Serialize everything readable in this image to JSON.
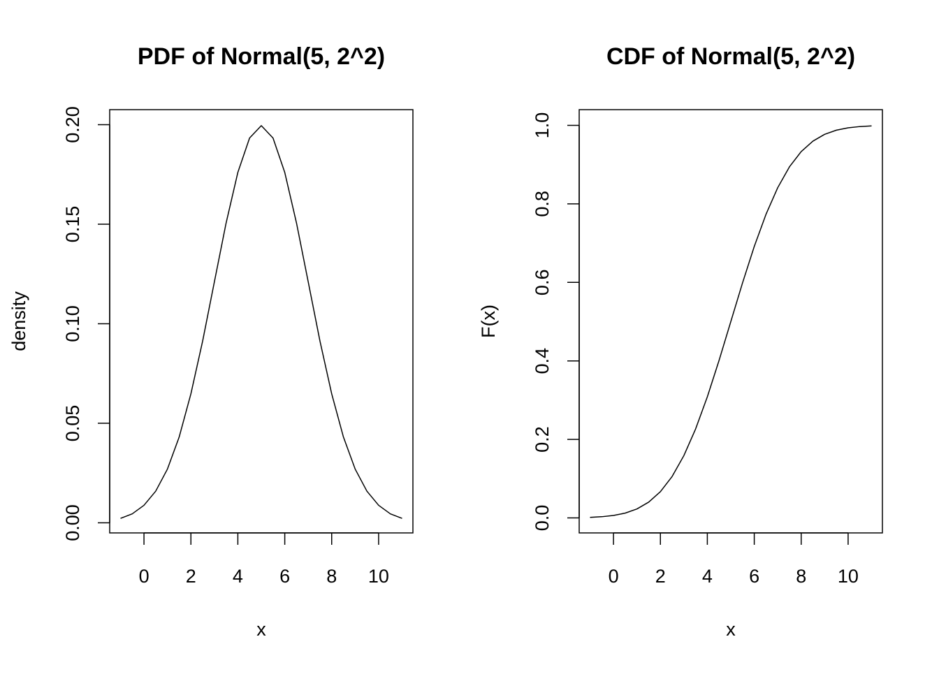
{
  "chart_data": [
    {
      "type": "line",
      "title": "PDF of Normal(5, 2^2)",
      "xlabel": "x",
      "ylabel": "density",
      "xlim": [
        -1,
        11
      ],
      "ylim": [
        0,
        0.2
      ],
      "x_ticks": [
        0,
        2,
        4,
        6,
        8,
        10
      ],
      "x_tick_labels": [
        "0",
        "2",
        "4",
        "6",
        "8",
        "10"
      ],
      "y_ticks": [
        0,
        0.05,
        0.1,
        0.15,
        0.2
      ],
      "y_tick_labels": [
        "0.00",
        "0.05",
        "0.10",
        "0.15",
        "0.20"
      ],
      "grid": false,
      "color": "#000000",
      "series": [
        {
          "x": [
            -1,
            -0.5,
            0,
            0.5,
            1,
            1.5,
            2,
            2.5,
            3,
            3.5,
            4,
            4.5,
            5,
            5.5,
            6,
            6.5,
            7,
            7.5,
            8,
            8.5,
            9,
            9.5,
            10,
            10.5,
            11
          ],
          "y": [
            0.0022,
            0.0045,
            0.0088,
            0.0159,
            0.027,
            0.0431,
            0.0648,
            0.0913,
            0.121,
            0.1506,
            0.176,
            0.1933,
            0.1995,
            0.1933,
            0.176,
            0.1506,
            0.121,
            0.0913,
            0.0648,
            0.0431,
            0.027,
            0.0159,
            0.0088,
            0.0045,
            0.0022
          ]
        }
      ]
    },
    {
      "type": "line",
      "title": "CDF of Normal(5, 2^2)",
      "xlabel": "x",
      "ylabel": "F(x)",
      "xlim": [
        -1,
        11
      ],
      "ylim": [
        0,
        1
      ],
      "x_ticks": [
        0,
        2,
        4,
        6,
        8,
        10
      ],
      "x_tick_labels": [
        "0",
        "2",
        "4",
        "6",
        "8",
        "10"
      ],
      "y_ticks": [
        0,
        0.2,
        0.4,
        0.6,
        0.8,
        1
      ],
      "y_tick_labels": [
        "0.0",
        "0.2",
        "0.4",
        "0.6",
        "0.8",
        "1.0"
      ],
      "grid": false,
      "color": "#000000",
      "series": [
        {
          "x": [
            -1,
            -0.5,
            0,
            0.5,
            1,
            1.5,
            2,
            2.5,
            3,
            3.5,
            4,
            4.5,
            5,
            5.5,
            6,
            6.5,
            7,
            7.5,
            8,
            8.5,
            9,
            9.5,
            10,
            10.5,
            11
          ],
          "y": [
            0.0013,
            0.003,
            0.0062,
            0.0122,
            0.0228,
            0.0401,
            0.0668,
            0.1056,
            0.1587,
            0.2266,
            0.3085,
            0.4013,
            0.5,
            0.5987,
            0.6915,
            0.7734,
            0.8413,
            0.8944,
            0.9332,
            0.9599,
            0.9772,
            0.9878,
            0.9938,
            0.997,
            0.9987
          ]
        }
      ]
    }
  ]
}
